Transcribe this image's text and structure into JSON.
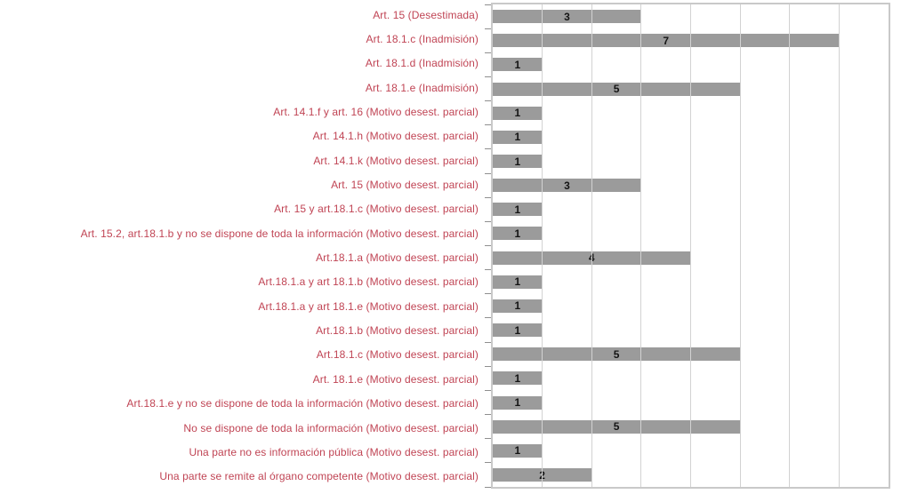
{
  "chart_data": {
    "type": "bar",
    "orientation": "horizontal",
    "title": "",
    "xlabel": "",
    "ylabel": "",
    "xlim": [
      0,
      8
    ],
    "x_gridline_interval": 1,
    "grid": true,
    "legend_position": "none",
    "categories": [
      "Art. 15 (Desestimada)",
      "Art. 18.1.c (Inadmisión)",
      "Art. 18.1.d (Inadmisión)",
      "Art. 18.1.e (Inadmisión)",
      "Art. 14.1.f y art. 16 (Motivo desest. parcial)",
      "Art. 14.1.h (Motivo desest. parcial)",
      "Art. 14.1.k  (Motivo desest. parcial)",
      "Art. 15 (Motivo desest. parcial)",
      "Art. 15 y art.18.1.c (Motivo desest. parcial)",
      "Art. 15.2, art.18.1.b y no se dispone de toda la información (Motivo desest. parcial)",
      "Art.18.1.a (Motivo desest. parcial)",
      "Art.18.1.a y art 18.1.b (Motivo desest. parcial)",
      "Art.18.1.a y art 18.1.e (Motivo desest. parcial)",
      "Art.18.1.b (Motivo desest. parcial)",
      "Art.18.1.c (Motivo desest. parcial)",
      "Art. 18.1.e (Motivo desest. parcial)",
      "Art.18.1.e y no se dispone de toda la información (Motivo desest. parcial)",
      "No se dispone de toda la información (Motivo desest. parcial)",
      "Una parte no es información pública (Motivo desest. parcial)",
      "Una parte se remite al órgano competente (Motivo desest. parcial)"
    ],
    "values": [
      3,
      7,
      1,
      5,
      1,
      1,
      1,
      3,
      1,
      1,
      4,
      1,
      1,
      1,
      5,
      1,
      1,
      5,
      1,
      2
    ]
  },
  "colors": {
    "bar_fill": "#9b9b9b",
    "category_label": "#c04454",
    "value_label": "#141414",
    "gridline": "#d2d2d2",
    "plot_border": "#c9c9c9",
    "axis_tick": "#8f8f8f",
    "background": "#ffffff"
  }
}
